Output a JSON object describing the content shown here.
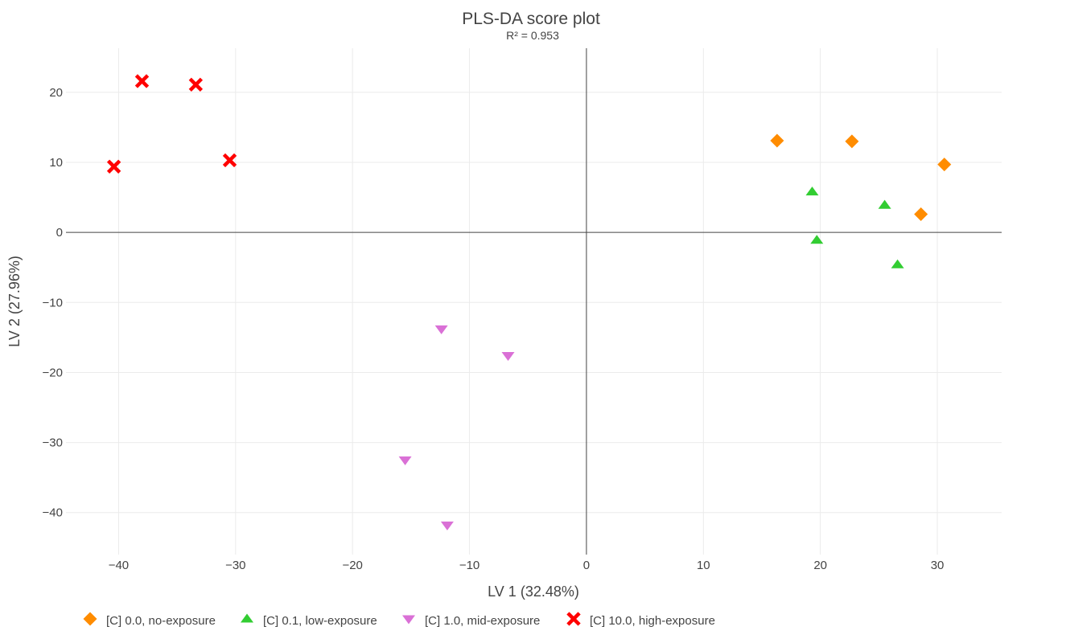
{
  "chart_data": {
    "type": "scatter",
    "title": "PLS-DA score plot",
    "subtitle": "R² = 0.953",
    "xlabel": "LV 1 (32.48%)",
    "ylabel": "LV 2 (27.96%)",
    "xlim": [
      -44.5,
      35.5
    ],
    "ylim": [
      -46,
      26.3
    ],
    "xticks": [
      -40,
      -30,
      -20,
      -10,
      0,
      10,
      20,
      30
    ],
    "yticks": [
      -40,
      -30,
      -20,
      -10,
      0,
      10,
      20
    ],
    "xtick_labels": [
      "−40",
      "−30",
      "−20",
      "−10",
      "0",
      "10",
      "20",
      "30"
    ],
    "ytick_labels": [
      "−40",
      "−30",
      "−20",
      "−10",
      "0",
      "10",
      "20"
    ],
    "grid": true,
    "zero_lines": true,
    "legend_position": "bottom-left",
    "series": [
      {
        "name": "[C] 0.0, no-exposure",
        "symbol": "diamond",
        "color": "#ff8c00",
        "points": [
          [
            16.3,
            13.1
          ],
          [
            22.7,
            13.0
          ],
          [
            30.6,
            9.7
          ],
          [
            28.6,
            2.6
          ]
        ]
      },
      {
        "name": "[C] 0.1, low-exposure",
        "symbol": "triangle-up",
        "color": "#32cd32",
        "points": [
          [
            19.3,
            5.8
          ],
          [
            25.5,
            3.9
          ],
          [
            19.7,
            -1.1
          ],
          [
            26.6,
            -4.6
          ]
        ]
      },
      {
        "name": "[C] 1.0, mid-exposure",
        "symbol": "triangle-down",
        "color": "#da70d6",
        "points": [
          [
            -12.4,
            -13.8
          ],
          [
            -6.7,
            -17.6
          ],
          [
            -15.5,
            -32.5
          ],
          [
            -11.9,
            -41.8
          ]
        ]
      },
      {
        "name": "[C] 10.0, high-exposure",
        "symbol": "x",
        "color": "#ff0000",
        "points": [
          [
            -38.0,
            21.6
          ],
          [
            -33.4,
            21.1
          ],
          [
            -30.5,
            10.3
          ],
          [
            -40.4,
            9.4
          ]
        ]
      }
    ]
  }
}
